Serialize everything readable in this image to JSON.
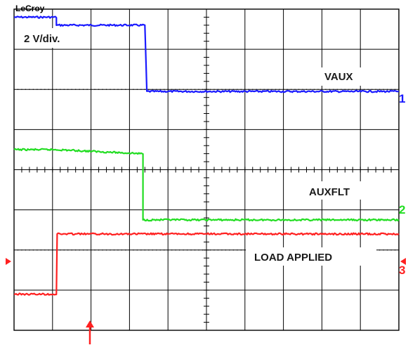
{
  "scope": {
    "brand": "LeCroy",
    "scale_label": "2 V/div.",
    "divisions": {
      "x": 10,
      "y": 8
    }
  },
  "colors": {
    "ch1": "#1a1aff",
    "ch2": "#22dd22",
    "ch3": "#ff2020",
    "grid": "#000000"
  },
  "chart_data": {
    "type": "line",
    "title": "",
    "xlabel": "",
    "ylabel": "",
    "y_units": "V",
    "volts_per_div": 2,
    "xlim": [
      0,
      10
    ],
    "ylim": [
      -4,
      4
    ],
    "grid": true,
    "series": [
      {
        "name": "VAUX",
        "channel": "1",
        "x": [
          0,
          1.1,
          1.1,
          3.4,
          3.45,
          10
        ],
        "y": [
          3.8,
          3.8,
          3.6,
          3.6,
          1.95,
          1.95
        ]
      },
      {
        "name": "AUXFLT",
        "channel": "2",
        "x": [
          0,
          1.1,
          3.3,
          3.35,
          3.35,
          10
        ],
        "y": [
          0.5,
          0.5,
          0.4,
          0.4,
          -1.25,
          -1.25
        ]
      },
      {
        "name": "LOAD APPLIED",
        "channel": "3",
        "x": [
          0,
          1.1,
          1.12,
          10
        ],
        "y": [
          -3.1,
          -3.1,
          -1.6,
          -1.6
        ]
      }
    ]
  }
}
